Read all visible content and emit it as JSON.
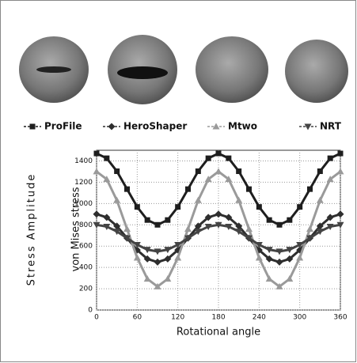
{
  "chart_data": {
    "type": "line",
    "y_title": "Stress Amplitude",
    "y_label": "von Mises stress",
    "x_label": "Rotational angle",
    "x": [
      0,
      15,
      30,
      45,
      60,
      75,
      90,
      105,
      120,
      135,
      150,
      165,
      180,
      195,
      210,
      225,
      240,
      255,
      270,
      285,
      300,
      315,
      330,
      345,
      360
    ],
    "series": [
      {
        "name": "ProFile",
        "color": "#1e1e1e",
        "marker": "square",
        "values": [
          1470,
          1425,
          1303,
          1135,
          968,
          845,
          800,
          845,
          968,
          1135,
          1303,
          1425,
          1470,
          1425,
          1303,
          1135,
          968,
          845,
          800,
          845,
          968,
          1135,
          1303,
          1425,
          1470
        ]
      },
      {
        "name": "HeroShaper",
        "color": "#2e2e2e",
        "marker": "diamond",
        "values": [
          900,
          870,
          788,
          675,
          563,
          480,
          450,
          480,
          563,
          675,
          788,
          870,
          900,
          870,
          788,
          675,
          563,
          480,
          450,
          480,
          563,
          675,
          788,
          870,
          900
        ]
      },
      {
        "name": "Mtwo",
        "color": "#9a9a9a",
        "marker": "triangle",
        "values": [
          1300,
          1228,
          1030,
          760,
          490,
          292,
          220,
          292,
          490,
          760,
          1030,
          1228,
          1300,
          1228,
          1030,
          760,
          490,
          292,
          220,
          292,
          490,
          760,
          1030,
          1228,
          1300
        ]
      },
      {
        "name": "NRT",
        "color": "#444444",
        "marker": "down-triangle",
        "values": [
          800,
          783,
          738,
          675,
          613,
          567,
          550,
          567,
          613,
          675,
          738,
          783,
          800,
          783,
          738,
          675,
          613,
          567,
          550,
          567,
          613,
          675,
          738,
          783,
          800
        ]
      }
    ],
    "xlim": [
      0,
      360
    ],
    "xticks": [
      0,
      60,
      120,
      180,
      240,
      300,
      360
    ],
    "ylim": [
      0,
      1500
    ],
    "yticks": [
      0,
      200,
      400,
      600,
      800,
      1000,
      1200,
      1400
    ],
    "grid": true
  }
}
